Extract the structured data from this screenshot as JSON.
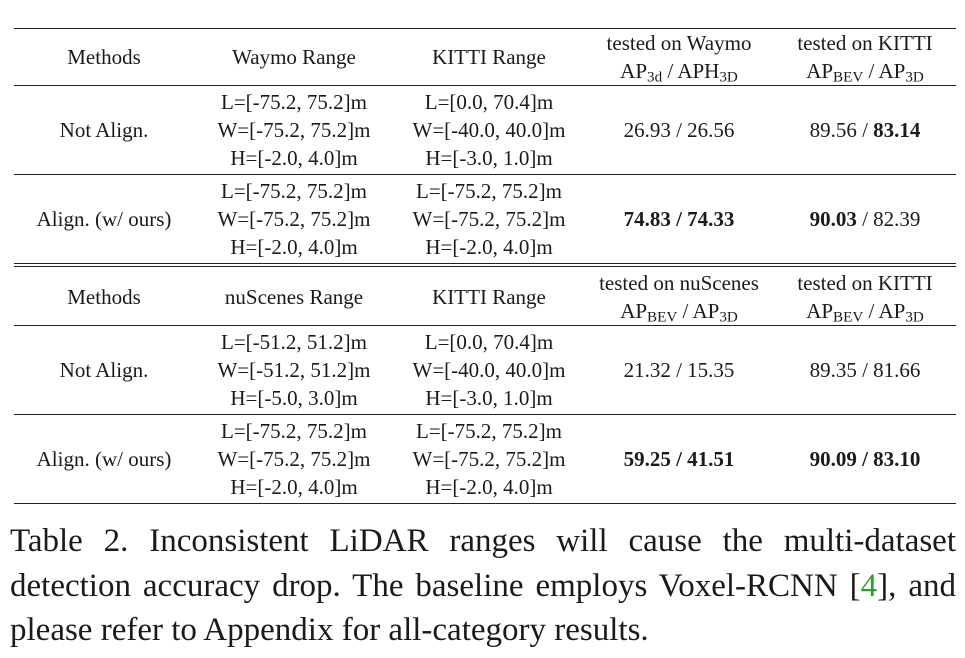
{
  "blocks": [
    {
      "headers": {
        "methods": "Methods",
        "range_a": "Waymo Range",
        "range_b": "KITTI Range",
        "test_a": {
          "line1": "tested on Waymo",
          "m1": "AP",
          "m1_sub": "3d",
          "sep": " / ",
          "m2": "APH",
          "m2_sub": "3D"
        },
        "test_b": {
          "line1": "tested on KITTI",
          "m1": "AP",
          "m1_sub": "BEV",
          "sep": " / ",
          "m2": "AP",
          "m2_sub": "3D"
        }
      },
      "rows": [
        {
          "method": "Not Align.",
          "range_a": [
            "L=[-75.2, 75.2]m",
            "W=[-75.2, 75.2]m",
            "H=[-2.0, 4.0]m"
          ],
          "range_b": [
            "L=[0.0, 70.4]m",
            "W=[-40.0, 40.0]m",
            "H=[-3.0, 1.0]m"
          ],
          "test_a": {
            "v1": "26.93",
            "sep": " / ",
            "v2": "26.56"
          },
          "test_b": {
            "v1": "89.56",
            "sep": " / ",
            "v2": "83.14"
          }
        },
        {
          "method": "Align. (w/ ours)",
          "range_a": [
            "L=[-75.2, 75.2]m",
            "W=[-75.2, 75.2]m",
            "H=[-2.0, 4.0]m"
          ],
          "range_b": [
            "L=[-75.2, 75.2]m",
            "W=[-75.2, 75.2]m",
            "H=[-2.0, 4.0]m"
          ],
          "test_a": {
            "v1": "74.83",
            "sep": " / ",
            "v2": "74.33"
          },
          "test_b": {
            "v1": "90.03",
            "sep": " / ",
            "v2": "82.39"
          }
        }
      ]
    },
    {
      "headers": {
        "methods": "Methods",
        "range_a": "nuScenes Range",
        "range_b": "KITTI Range",
        "test_a": {
          "line1": "tested on nuScenes",
          "m1": "AP",
          "m1_sub": "BEV",
          "sep": " / ",
          "m2": "AP",
          "m2_sub": "3D"
        },
        "test_b": {
          "line1": "tested on KITTI",
          "m1": "AP",
          "m1_sub": "BEV",
          "sep": " / ",
          "m2": "AP",
          "m2_sub": "3D"
        }
      },
      "rows": [
        {
          "method": "Not Align.",
          "range_a": [
            "L=[-51.2, 51.2]m",
            "W=[-51.2, 51.2]m",
            "H=[-5.0, 3.0]m"
          ],
          "range_b": [
            "L=[0.0, 70.4]m",
            "W=[-40.0, 40.0]m",
            "H=[-3.0, 1.0]m"
          ],
          "test_a": {
            "v1": "21.32",
            "sep": " / ",
            "v2": "15.35"
          },
          "test_b": {
            "v1": "89.35",
            "sep": " / ",
            "v2": "81.66"
          }
        },
        {
          "method": "Align. (w/ ours)",
          "range_a": [
            "L=[-75.2, 75.2]m",
            "W=[-75.2, 75.2]m",
            "H=[-2.0, 4.0]m"
          ],
          "range_b": [
            "L=[-75.2, 75.2]m",
            "W=[-75.2, 75.2]m",
            "H=[-2.0, 4.0]m"
          ],
          "test_a": {
            "v1": "59.25",
            "sep": " / ",
            "v2": "41.51"
          },
          "test_b": {
            "v1": "90.09",
            "sep": " / ",
            "v2": "83.10"
          }
        }
      ]
    }
  ],
  "caption": {
    "before": "Table 2.  Inconsistent LiDAR ranges will cause the multi-dataset detection accuracy drop. The baseline employs Voxel-RCNN [",
    "cite": "4",
    "after": "], and please refer to Appendix for all-category results.",
    "cite_color": "#2ca02c"
  }
}
